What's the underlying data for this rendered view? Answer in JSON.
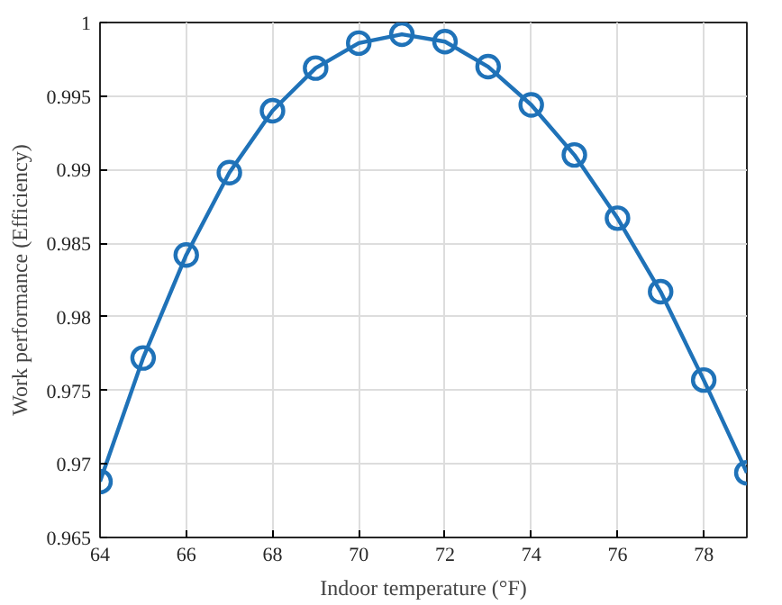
{
  "chart_data": {
    "type": "line",
    "xlabel": "Indoor temperature (°F)",
    "ylabel": "Work performance (Efficiency)",
    "x": [
      64,
      65,
      66,
      67,
      68,
      69,
      70,
      71,
      72,
      73,
      74,
      75,
      76,
      77,
      78,
      79
    ],
    "series": [
      {
        "color": "#1f72b8",
        "values": [
          0.9688,
          0.9772,
          0.9842,
          0.9898,
          0.994,
          0.9969,
          0.9986,
          0.9992,
          0.9987,
          0.997,
          0.9944,
          0.991,
          0.9867,
          0.9817,
          0.9757,
          0.9694
        ]
      }
    ],
    "xlim": [
      64,
      79
    ],
    "xticks": [
      64,
      66,
      68,
      70,
      72,
      74,
      76,
      78
    ],
    "ylim": [
      0.965,
      1
    ],
    "yticks": [
      {
        "value": 0.965,
        "label": "0.965"
      },
      {
        "value": 0.97,
        "label": "0.97"
      },
      {
        "value": 0.975,
        "label": "0.975"
      },
      {
        "value": 0.98,
        "label": "0.98"
      },
      {
        "value": 0.985,
        "label": "0.985"
      },
      {
        "value": 0.99,
        "label": "0.99"
      },
      {
        "value": 0.995,
        "label": "0.995"
      },
      {
        "value": 1,
        "label": "1"
      }
    ],
    "grid": true,
    "marker": "circle",
    "line_style": "solid"
  }
}
